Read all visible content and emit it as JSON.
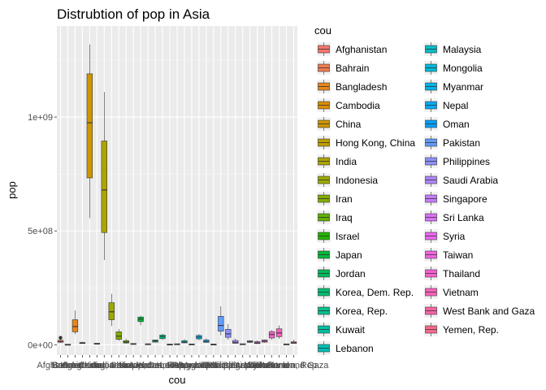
{
  "chart_data": {
    "type": "box",
    "title": "Distrubtion of pop in Asia",
    "xlabel": "cou",
    "ylabel": "pop",
    "legend_title": "cou",
    "legend_position": "right",
    "grid": true,
    "ylim": [
      -45000000,
      1400000000
    ],
    "y_ticks": [
      0,
      500000000,
      1000000000
    ],
    "y_tick_labels": [
      "0e+00",
      "5e+08",
      "1e+09"
    ],
    "categories": [
      "Afghanistan",
      "Bahrain",
      "Bangladesh",
      "Cambodia",
      "China",
      "Hong Kong, China",
      "India",
      "Indonesia",
      "Iran",
      "Iraq",
      "Israel",
      "Japan",
      "Jordan",
      "Korea, Dem. Rep.",
      "Korea, Rep.",
      "Kuwait",
      "Lebanon",
      "Malaysia",
      "Mongolia",
      "Myanmar",
      "Nepal",
      "Oman",
      "Pakistan",
      "Philippines",
      "Saudi Arabia",
      "Singapore",
      "Sri Lanka",
      "Syria",
      "Taiwan",
      "Thailand",
      "Vietnam",
      "West Bank and Gaza",
      "Yemen, Rep."
    ],
    "colors": [
      "#F8766D",
      "#F17D50",
      "#E7861B",
      "#DB8E00",
      "#CE9700",
      "#BF9F00",
      "#AEA400",
      "#9BAA00",
      "#82AE00",
      "#61B200",
      "#24B700",
      "#00BA38",
      "#00BC59",
      "#00BF73",
      "#00C08B",
      "#00C0A2",
      "#00C0B7",
      "#00BECA",
      "#00BADB",
      "#00B4EA",
      "#00ABF6",
      "#00A1FF",
      "#619CFF",
      "#8E91FF",
      "#AE87FF",
      "#C77CFF",
      "#DB72FB",
      "#EB69F0",
      "#F564E3",
      "#FD61D1",
      "#FF62BC",
      "#FF64A5",
      "#FF6A8D"
    ],
    "stats": [
      {
        "min": 8400000,
        "q1": 11500000,
        "median": 14000000,
        "q3": 20000000,
        "max": 31900000,
        "outliers": [
          31000000
        ]
      },
      {
        "min": 120000,
        "q1": 200000,
        "median": 330000,
        "q3": 500000,
        "max": 710000,
        "outliers": []
      },
      {
        "min": 46000000,
        "q1": 57000000,
        "median": 80000000,
        "q3": 110000000,
        "max": 150000000,
        "outliers": []
      },
      {
        "min": 4700000,
        "q1": 6000000,
        "median": 7500000,
        "q3": 10000000,
        "max": 14100000,
        "outliers": []
      },
      {
        "min": 556000000,
        "q1": 733000000,
        "median": 975000000,
        "q3": 1190000000,
        "max": 1319000000,
        "outliers": []
      },
      {
        "min": 2100000,
        "q1": 3300000,
        "median": 4700000,
        "q3": 6000000,
        "max": 6980000,
        "outliers": []
      },
      {
        "min": 372000000,
        "q1": 493000000,
        "median": 680000000,
        "q3": 895000000,
        "max": 1110000000,
        "outliers": []
      },
      {
        "min": 82000000,
        "q1": 110000000,
        "median": 145000000,
        "q3": 185000000,
        "max": 224000000,
        "outliers": []
      },
      {
        "min": 17000000,
        "q1": 24000000,
        "median": 38000000,
        "q3": 57000000,
        "max": 69000000,
        "outliers": []
      },
      {
        "min": 5400000,
        "q1": 8000000,
        "median": 12000000,
        "q3": 18000000,
        "max": 27500000,
        "outliers": []
      },
      {
        "min": 1600000,
        "q1": 2400000,
        "median": 3600000,
        "q3": 4900000,
        "max": 6400000,
        "outliers": []
      },
      {
        "min": 86000000,
        "q1": 102000000,
        "median": 113000000,
        "q3": 122000000,
        "max": 127500000,
        "outliers": []
      },
      {
        "min": 600000,
        "q1": 1100000,
        "median": 2200000,
        "q3": 3900000,
        "max": 6100000,
        "outliers": []
      },
      {
        "min": 8900000,
        "q1": 12000000,
        "median": 17000000,
        "q3": 21000000,
        "max": 23300000,
        "outliers": []
      },
      {
        "min": 20900000,
        "q1": 27000000,
        "median": 36000000,
        "q3": 43000000,
        "max": 49000000,
        "outliers": []
      },
      {
        "min": 160000,
        "q1": 400000,
        "median": 1000000,
        "q3": 1700000,
        "max": 2500000,
        "outliers": []
      },
      {
        "min": 1400000,
        "q1": 1800000,
        "median": 2700000,
        "q3": 3100000,
        "max": 3900000,
        "outliers": []
      },
      {
        "min": 6700000,
        "q1": 8600000,
        "median": 12000000,
        "q3": 18000000,
        "max": 24800000,
        "outliers": []
      },
      {
        "min": 800000,
        "q1": 1100000,
        "median": 1600000,
        "q3": 2300000,
        "max": 2900000,
        "outliers": []
      },
      {
        "min": 20000000,
        "q1": 26000000,
        "median": 34000000,
        "q3": 41000000,
        "max": 47800000,
        "outliers": []
      },
      {
        "min": 9200000,
        "q1": 11000000,
        "median": 15000000,
        "q3": 21000000,
        "max": 28900000,
        "outliers": []
      },
      {
        "min": 510000,
        "q1": 700000,
        "median": 1200000,
        "q3": 2000000,
        "max": 3200000,
        "outliers": []
      },
      {
        "min": 41300000,
        "q1": 60000000,
        "median": 85000000,
        "q3": 125000000,
        "max": 169000000,
        "outliers": []
      },
      {
        "min": 22400000,
        "q1": 33000000,
        "median": 48000000,
        "q3": 68000000,
        "max": 91000000,
        "outliers": []
      },
      {
        "min": 4000000,
        "q1": 6500000,
        "median": 11000000,
        "q3": 19000000,
        "max": 27600000,
        "outliers": []
      },
      {
        "min": 1100000,
        "q1": 1700000,
        "median": 2400000,
        "q3": 3300000,
        "max": 4600000,
        "outliers": []
      },
      {
        "min": 7900000,
        "q1": 11000000,
        "median": 14500000,
        "q3": 17500000,
        "max": 20400000,
        "outliers": []
      },
      {
        "min": 3700000,
        "q1": 5500000,
        "median": 8500000,
        "q3": 14000000,
        "max": 19300000,
        "outliers": []
      },
      {
        "min": 8600000,
        "q1": 12000000,
        "median": 16500000,
        "q3": 20500000,
        "max": 23200000,
        "outliers": []
      },
      {
        "min": 21300000,
        "q1": 30000000,
        "median": 45000000,
        "q3": 58000000,
        "max": 65100000,
        "outliers": []
      },
      {
        "min": 26200000,
        "q1": 36000000,
        "median": 52000000,
        "q3": 70000000,
        "max": 85300000,
        "outliers": []
      },
      {
        "min": 1000000,
        "q1": 1200000,
        "median": 1700000,
        "q3": 2600000,
        "max": 4000000,
        "outliers": []
      },
      {
        "min": 4900000,
        "q1": 6300000,
        "median": 9000000,
        "q3": 13000000,
        "max": 22200000,
        "outliers": []
      }
    ]
  }
}
